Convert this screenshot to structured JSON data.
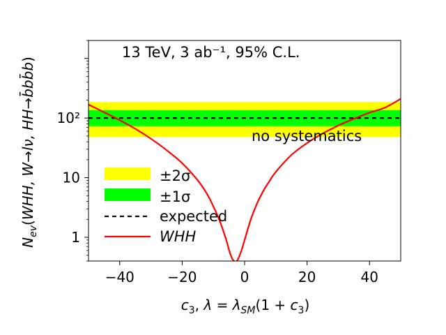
{
  "chart_data": {
    "type": "line",
    "annotation": "13 TeV, 3 ab⁻¹, 95% C.L.",
    "note": "no systematics",
    "xlabel": "c₃,  λ = λ_SM(1 + c₃)",
    "ylabel": "N_ev(WHH, W→lν, HH→b̅bb̅b)",
    "xlim": [
      -50,
      50
    ],
    "ylim": [
      0.4,
      2000
    ],
    "yscale": "log",
    "x_ticks": [
      -40,
      -20,
      0,
      20,
      40
    ],
    "y_ticks": [
      1,
      10,
      100
    ],
    "y_tick_labels": [
      "1",
      "10",
      "10²"
    ],
    "expected": 100,
    "band_1sigma": [
      73,
      136
    ],
    "band_2sigma": [
      48,
      185
    ],
    "series": [
      {
        "name": "WHH",
        "color": "#ff0000",
        "style": "solid",
        "x": [
          -50,
          -45,
          -40,
          -35,
          -30,
          -25,
          -20,
          -15,
          -12,
          -10,
          -8,
          -6,
          -5,
          -4,
          -3,
          -2.5,
          -2,
          -1,
          0,
          2,
          4,
          6,
          8,
          10,
          15,
          20,
          25,
          30,
          35,
          40,
          45,
          50
        ],
        "y": [
          168,
          125,
          92,
          66,
          45,
          29,
          17.5,
          9.0,
          5.3,
          3.3,
          1.9,
          0.95,
          0.62,
          0.44,
          0.39,
          0.4,
          0.44,
          0.6,
          0.9,
          2.0,
          3.7,
          6.0,
          8.8,
          12.5,
          24,
          38,
          55,
          75,
          97,
          123,
          150,
          210
        ]
      }
    ],
    "legend": {
      "position": "lower-left",
      "entries": [
        "±2σ",
        "±1σ",
        "expected",
        "WHH"
      ],
      "colors": [
        "#ffff00",
        "#00ff00",
        "#000000",
        "#ff0000"
      ]
    }
  }
}
